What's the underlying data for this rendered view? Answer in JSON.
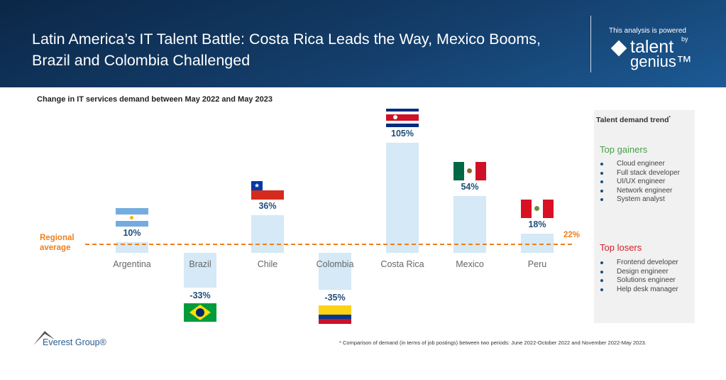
{
  "header": {
    "title": "Latin America’s IT Talent Battle: Costa Rica Leads the Way, Mexico Booms, Brazil and Colombia Challenged",
    "powered_text": "This analysis is powered",
    "by": "by",
    "logo_line1": "talent",
    "logo_line2": "genius™"
  },
  "chart_data": {
    "type": "bar",
    "title": "Change in IT services demand between May 2022 and May 2023",
    "categories": [
      "Argentina",
      "Brazil",
      "Chile",
      "Colombia",
      "Costa Rica",
      "Mexico",
      "Peru"
    ],
    "values": [
      10,
      -33,
      36,
      -35,
      105,
      54,
      18
    ],
    "value_labels": [
      "10%",
      "-33%",
      "36%",
      "-35%",
      "105%",
      "54%",
      "18%"
    ],
    "unit": "%",
    "bar_color": "#d5e9f6",
    "reference_line": {
      "label": "Regional average",
      "value": 22,
      "value_label": "22%",
      "color": "#f07f1e",
      "style": "dashed"
    },
    "grid": false
  },
  "panel": {
    "title": "Talent demand trend",
    "title_mark": "*",
    "gainers_title": "Top gainers",
    "gainers": [
      "Cloud engineer",
      "Full stack developer",
      "UI/UX engineer",
      "Network engineer",
      "System analyst"
    ],
    "losers_title": "Top losers",
    "losers": [
      "Frontend developer",
      "Design engineer",
      "Solutions engineer",
      "Help desk manager"
    ]
  },
  "footnote": "*   Comparison of demand (in terms of job postings) between two periods: June 2022-October 2022 and November 2022-May 2023.",
  "brand": "Everest Group®"
}
